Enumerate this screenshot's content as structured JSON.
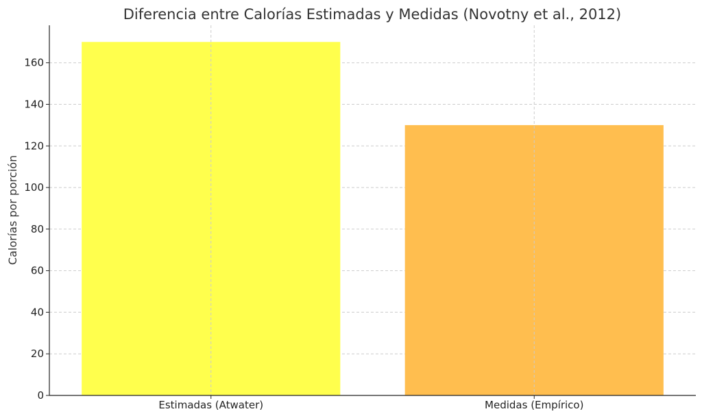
{
  "chart_data": {
    "type": "bar",
    "title": "Diferencia entre Calorías Estimadas y Medidas (Novotny et al., 2012)",
    "xlabel": "",
    "ylabel": "Calorías por porción",
    "categories": [
      "Estimadas (Atwater)",
      "Medidas (Empírico)"
    ],
    "values": [
      170,
      130
    ],
    "colors": [
      "#ffff4d",
      "#ffbe4f"
    ],
    "ylim": [
      0,
      178
    ],
    "yticks": [
      0,
      20,
      40,
      60,
      80,
      100,
      120,
      140,
      160
    ],
    "grid": true
  }
}
